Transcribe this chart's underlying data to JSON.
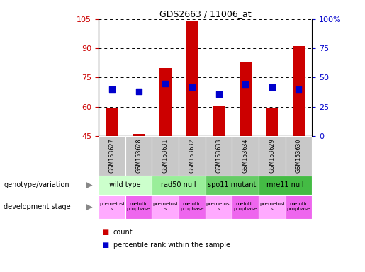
{
  "title": "GDS2663 / 11006_at",
  "samples": [
    "GSM153627",
    "GSM153628",
    "GSM153631",
    "GSM153632",
    "GSM153633",
    "GSM153634",
    "GSM153629",
    "GSM153630"
  ],
  "counts": [
    59,
    46,
    80,
    104,
    60.5,
    83,
    59,
    91
  ],
  "percentile_ranks": [
    40,
    38,
    45,
    42,
    36,
    44,
    42,
    40
  ],
  "ylim_left": [
    45,
    105
  ],
  "ylim_right": [
    0,
    100
  ],
  "yticks_left": [
    45,
    60,
    75,
    90,
    105
  ],
  "ytick_labels_left": [
    "45",
    "60",
    "75",
    "90",
    "105"
  ],
  "yticks_right": [
    0,
    25,
    50,
    75,
    100
  ],
  "ytick_labels_right": [
    "0",
    "25",
    "50",
    "75",
    "100%"
  ],
  "bar_color": "#cc0000",
  "dot_color": "#0000cc",
  "sample_bg_color": "#c8c8c8",
  "genotype_groups": [
    {
      "label": "wild type",
      "start": 0,
      "end": 2,
      "color": "#ccffcc"
    },
    {
      "label": "rad50 null",
      "start": 2,
      "end": 4,
      "color": "#99ee99"
    },
    {
      "label": "spo11 mutant",
      "start": 4,
      "end": 6,
      "color": "#66cc66"
    },
    {
      "label": "mre11 null",
      "start": 6,
      "end": 8,
      "color": "#44bb44"
    }
  ],
  "dev_stage_premeiosis_color": "#ffaaff",
  "dev_stage_meiotic_color": "#ee66ee",
  "dev_stages": [
    {
      "label": "premeiosi\ns",
      "start": 0,
      "end": 1,
      "type": "pre"
    },
    {
      "label": "meiotic\nprophase",
      "start": 1,
      "end": 2,
      "type": "meiotic"
    },
    {
      "label": "premeiosi\ns",
      "start": 2,
      "end": 3,
      "type": "pre"
    },
    {
      "label": "meiotic\nprophase",
      "start": 3,
      "end": 4,
      "type": "meiotic"
    },
    {
      "label": "premeiosi\ns",
      "start": 4,
      "end": 5,
      "type": "pre"
    },
    {
      "label": "meiotic\nprophase",
      "start": 5,
      "end": 6,
      "type": "meiotic"
    },
    {
      "label": "premeiosi\ns",
      "start": 6,
      "end": 7,
      "type": "pre"
    },
    {
      "label": "meiotic\nprophase",
      "start": 7,
      "end": 8,
      "type": "meiotic"
    }
  ],
  "tick_color_left": "#cc0000",
  "tick_color_right": "#0000cc",
  "genotype_row_label": "genotype/variation",
  "devstage_row_label": "development stage",
  "legend_count_label": "count",
  "legend_pct_label": "percentile rank within the sample"
}
